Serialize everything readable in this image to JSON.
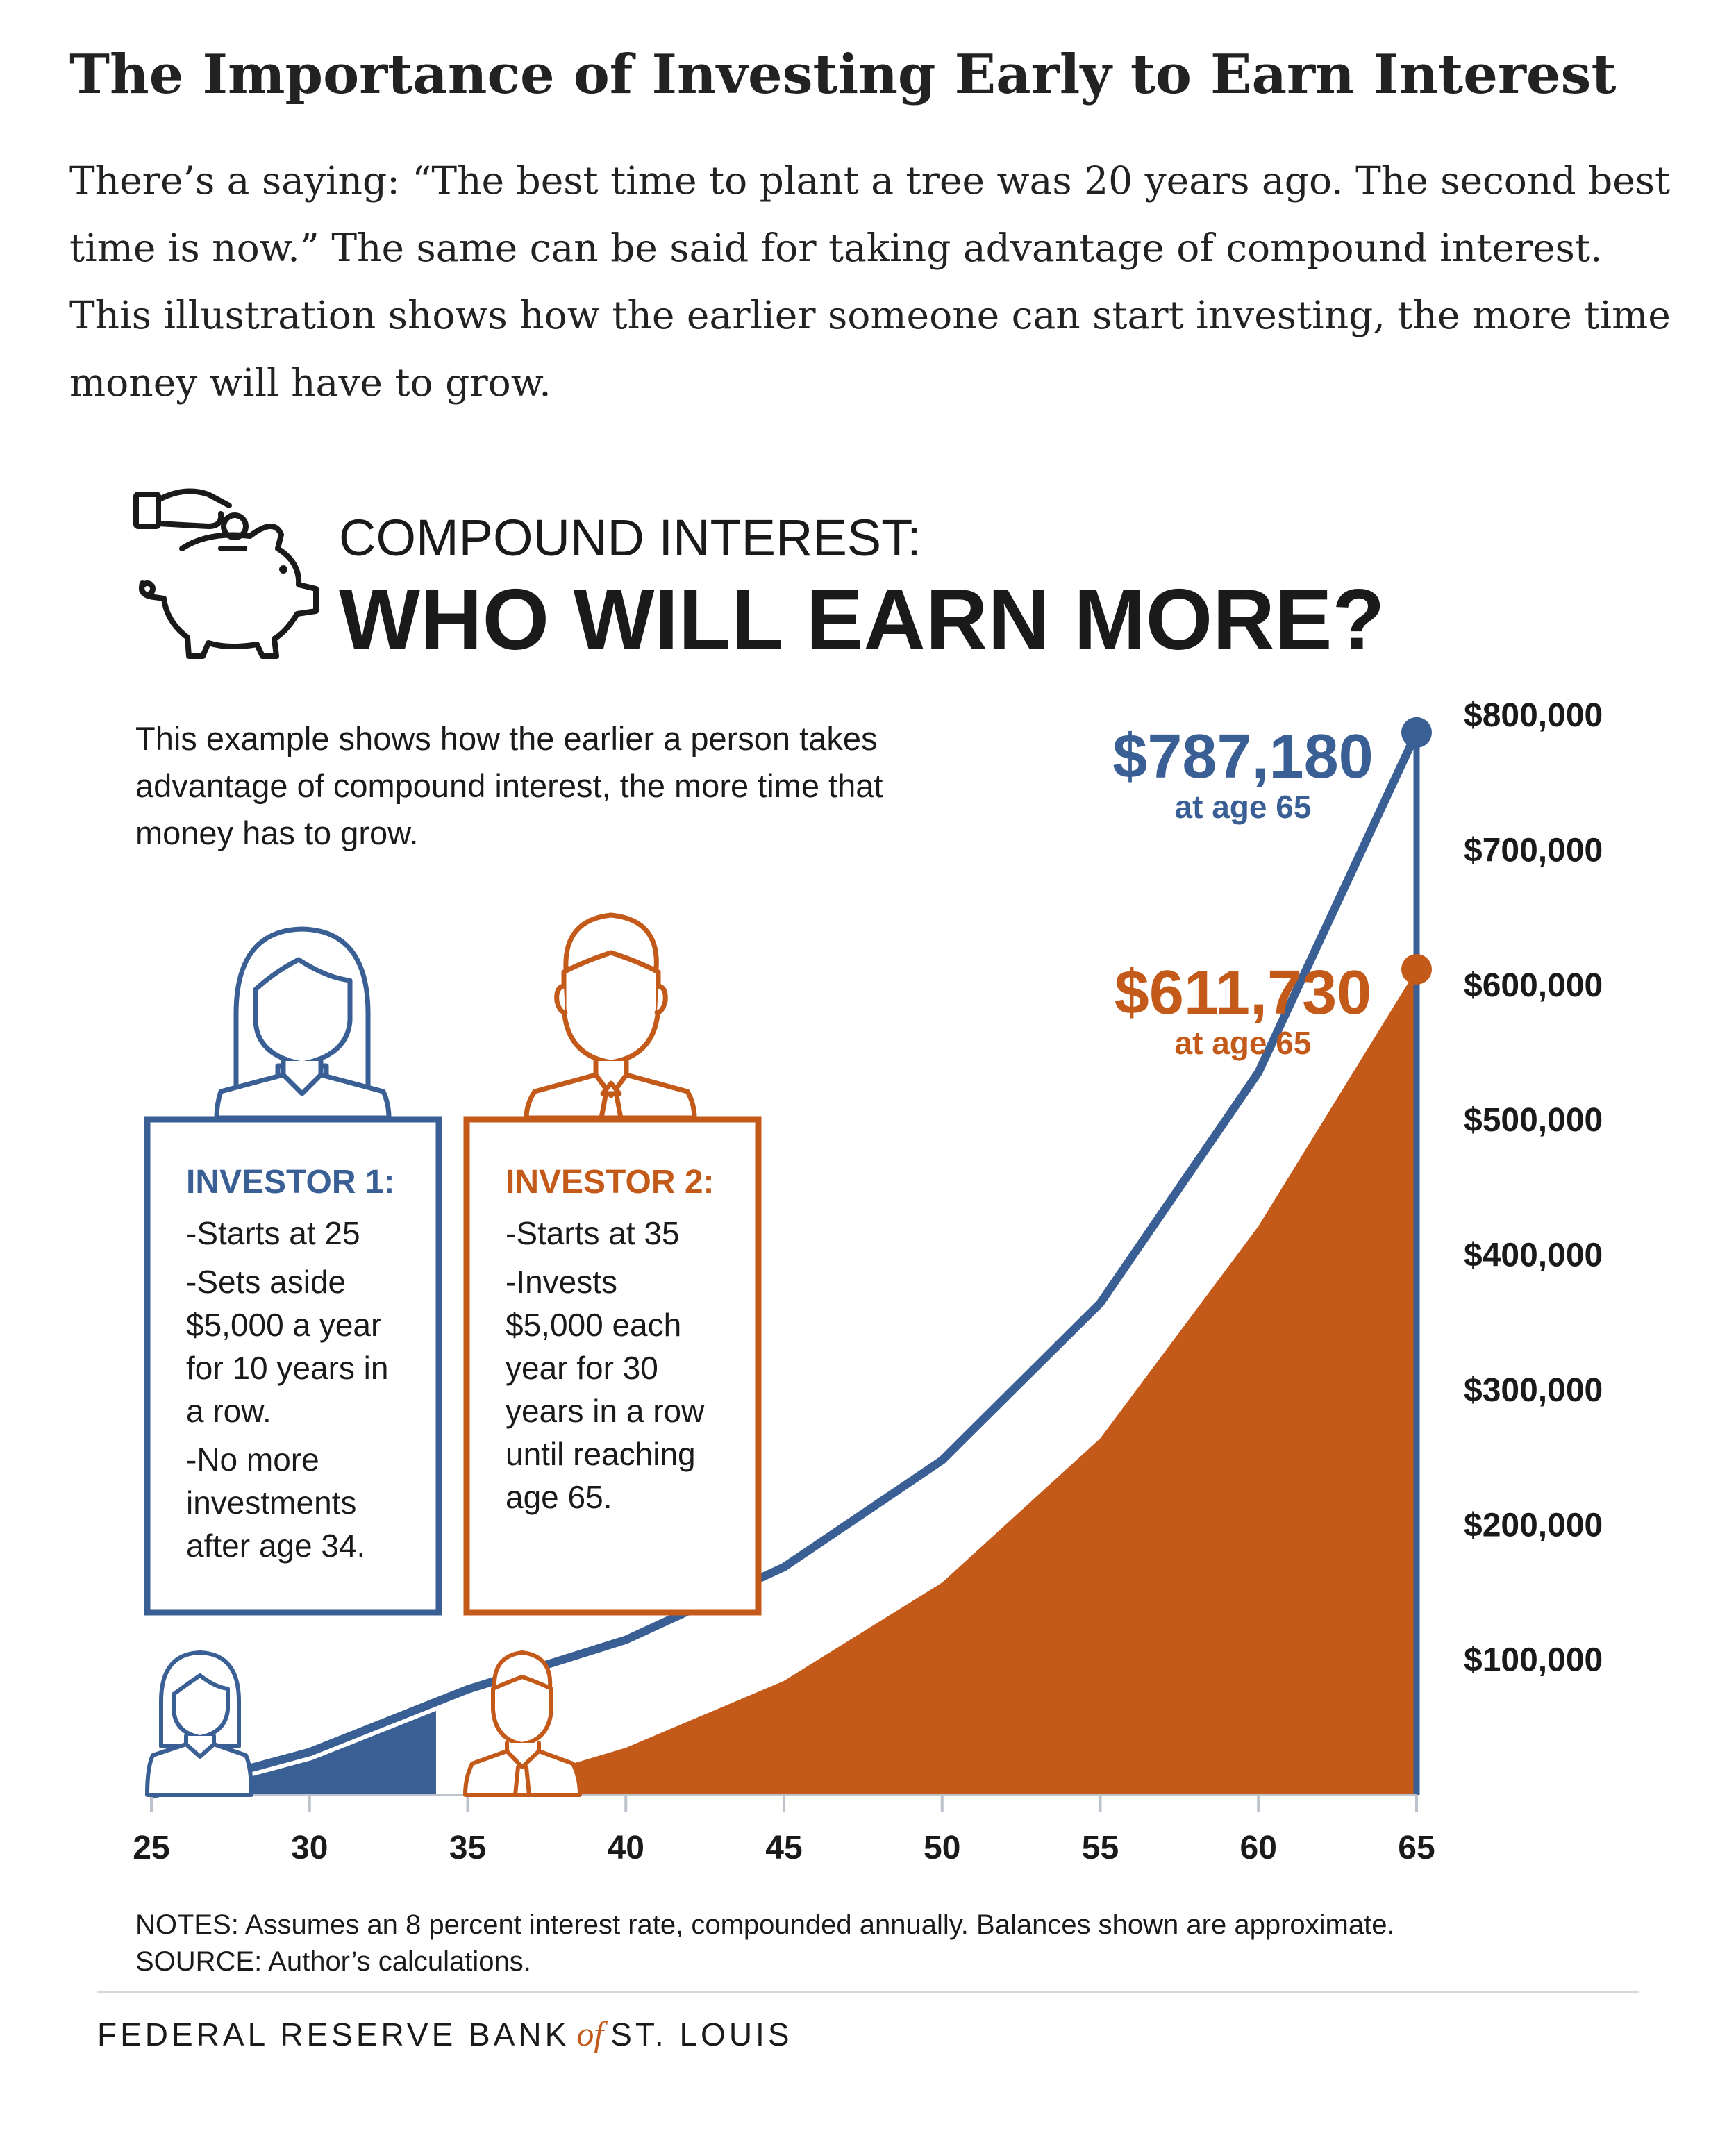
{
  "article": {
    "title": "The Importance of Investing Early to Earn Interest",
    "intro": "There’s a saying: “The best time to plant a tree was 20 years ago. The second best time is now.” The same can be said for taking advantage of compound interest. This illustration shows how the earlier someone can start investing, the more time money will have to grow."
  },
  "infographic": {
    "title_line1": "COMPOUND INTEREST:",
    "title_line2": "WHO WILL EARN MORE?",
    "description": [
      "This example shows how the earlier a person takes",
      "advantage of compound interest, the more time that",
      "money has to grow."
    ],
    "investor1": {
      "heading": "INVESTOR 1:",
      "lines": [
        "-Starts at 25",
        "-Sets aside",
        "$5,000 a year",
        "for 10 years in",
        "a row.",
        "-No more",
        "investments",
        "after age 34."
      ]
    },
    "investor2": {
      "heading": "INVESTOR 2:",
      "lines": [
        "-Starts at 35",
        "-Invests",
        "$5,000 each",
        "year for 30",
        "years in a row",
        "until reaching",
        "age 65."
      ]
    },
    "callout1": {
      "value": "$787,180",
      "sub": "at age 65"
    },
    "callout2": {
      "value": "$611,730",
      "sub": "at age 65"
    },
    "notes_line1": "NOTES: Assumes an 8 percent interest rate, compounded annually. Balances shown are approximate.",
    "notes_line2": "SOURCE: Author’s calculations.",
    "logo_left": "FEDERAL RESERVE BANK",
    "logo_of": "of",
    "logo_right": "ST. LOUIS"
  },
  "colors": {
    "investor1": "#3a5f95",
    "investor2": "#c45a1a",
    "axis": "#bcc3cc",
    "text": "#1a1a1a"
  },
  "icons": [
    "hand-coin-piggy-bank-icon",
    "woman-avatar-icon",
    "man-avatar-icon"
  ],
  "chart_data": {
    "type": "area",
    "x": [
      25,
      30,
      35,
      40,
      45,
      50,
      55,
      60,
      65
    ],
    "x_ticks": [
      "25",
      "30",
      "35",
      "40",
      "45",
      "50",
      "55",
      "60",
      "65"
    ],
    "y_ticks": [
      "$100,000",
      "$200,000",
      "$300,000",
      "$400,000",
      "$500,000",
      "$600,000",
      "$700,000",
      "$800,000"
    ],
    "ylim": [
      0,
      800000
    ],
    "xlim": [
      25,
      65
    ],
    "series": [
      {
        "values": [
          0,
          31700,
          78200,
          114900,
          168800,
          248000,
          364400,
          535400,
          787180
        ]
      },
      {
        "values": [
          0,
          0,
          0,
          34900,
          84500,
          157300,
          264200,
          421400,
          611730
        ]
      }
    ],
    "investor1_fill_range": [
      28,
      34
    ],
    "investor2_fill_range": [
      38,
      65
    ]
  }
}
